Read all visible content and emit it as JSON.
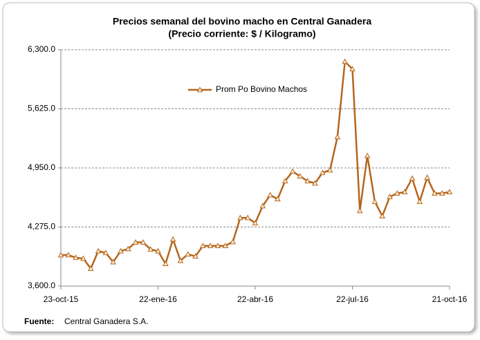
{
  "chart_data": {
    "type": "line",
    "title": "Precios semanal del bovino  macho en Central Ganadera",
    "subtitle": "(Precio corriente: $ / Kilogramo)",
    "categories": [
      "23-oct-15",
      null,
      null,
      null,
      null,
      null,
      null,
      null,
      null,
      null,
      null,
      null,
      null,
      "22-ene-16",
      null,
      null,
      null,
      null,
      null,
      null,
      null,
      null,
      null,
      null,
      null,
      null,
      "22-abr-16",
      null,
      null,
      null,
      null,
      null,
      null,
      null,
      null,
      null,
      null,
      null,
      null,
      "22-jul-16",
      null,
      null,
      null,
      null,
      null,
      null,
      null,
      null,
      null,
      null,
      null,
      null,
      "21-oct-16"
    ],
    "series": [
      {
        "name": "Prom Po Bovino Machos",
        "color": "#b5651d",
        "values": [
          3955,
          3955,
          3925,
          3915,
          3800,
          4000,
          3980,
          3875,
          4000,
          4025,
          4100,
          4100,
          4020,
          4000,
          3855,
          4135,
          3890,
          3965,
          3940,
          4060,
          4060,
          4060,
          4060,
          4105,
          4380,
          4380,
          4320,
          4515,
          4640,
          4595,
          4800,
          4910,
          4855,
          4800,
          4775,
          4895,
          4925,
          5305,
          6165,
          6080,
          4460,
          5090,
          4565,
          4400,
          4620,
          4660,
          4675,
          4830,
          4565,
          4840,
          4660,
          4660,
          4675
        ]
      }
    ],
    "ylim": [
      3600,
      6300
    ],
    "yticks": [
      {
        "value": 3600,
        "label": "3,600.0"
      },
      {
        "value": 4275,
        "label": "4,275.0"
      },
      {
        "value": 4950,
        "label": "4,950.0"
      },
      {
        "value": 5625,
        "label": "5,625.0"
      },
      {
        "value": 6300,
        "label": "6,300.0"
      }
    ],
    "grid": true,
    "legend": "top",
    "source_label": "Fuente:",
    "source": "Central Ganadera S.A."
  }
}
